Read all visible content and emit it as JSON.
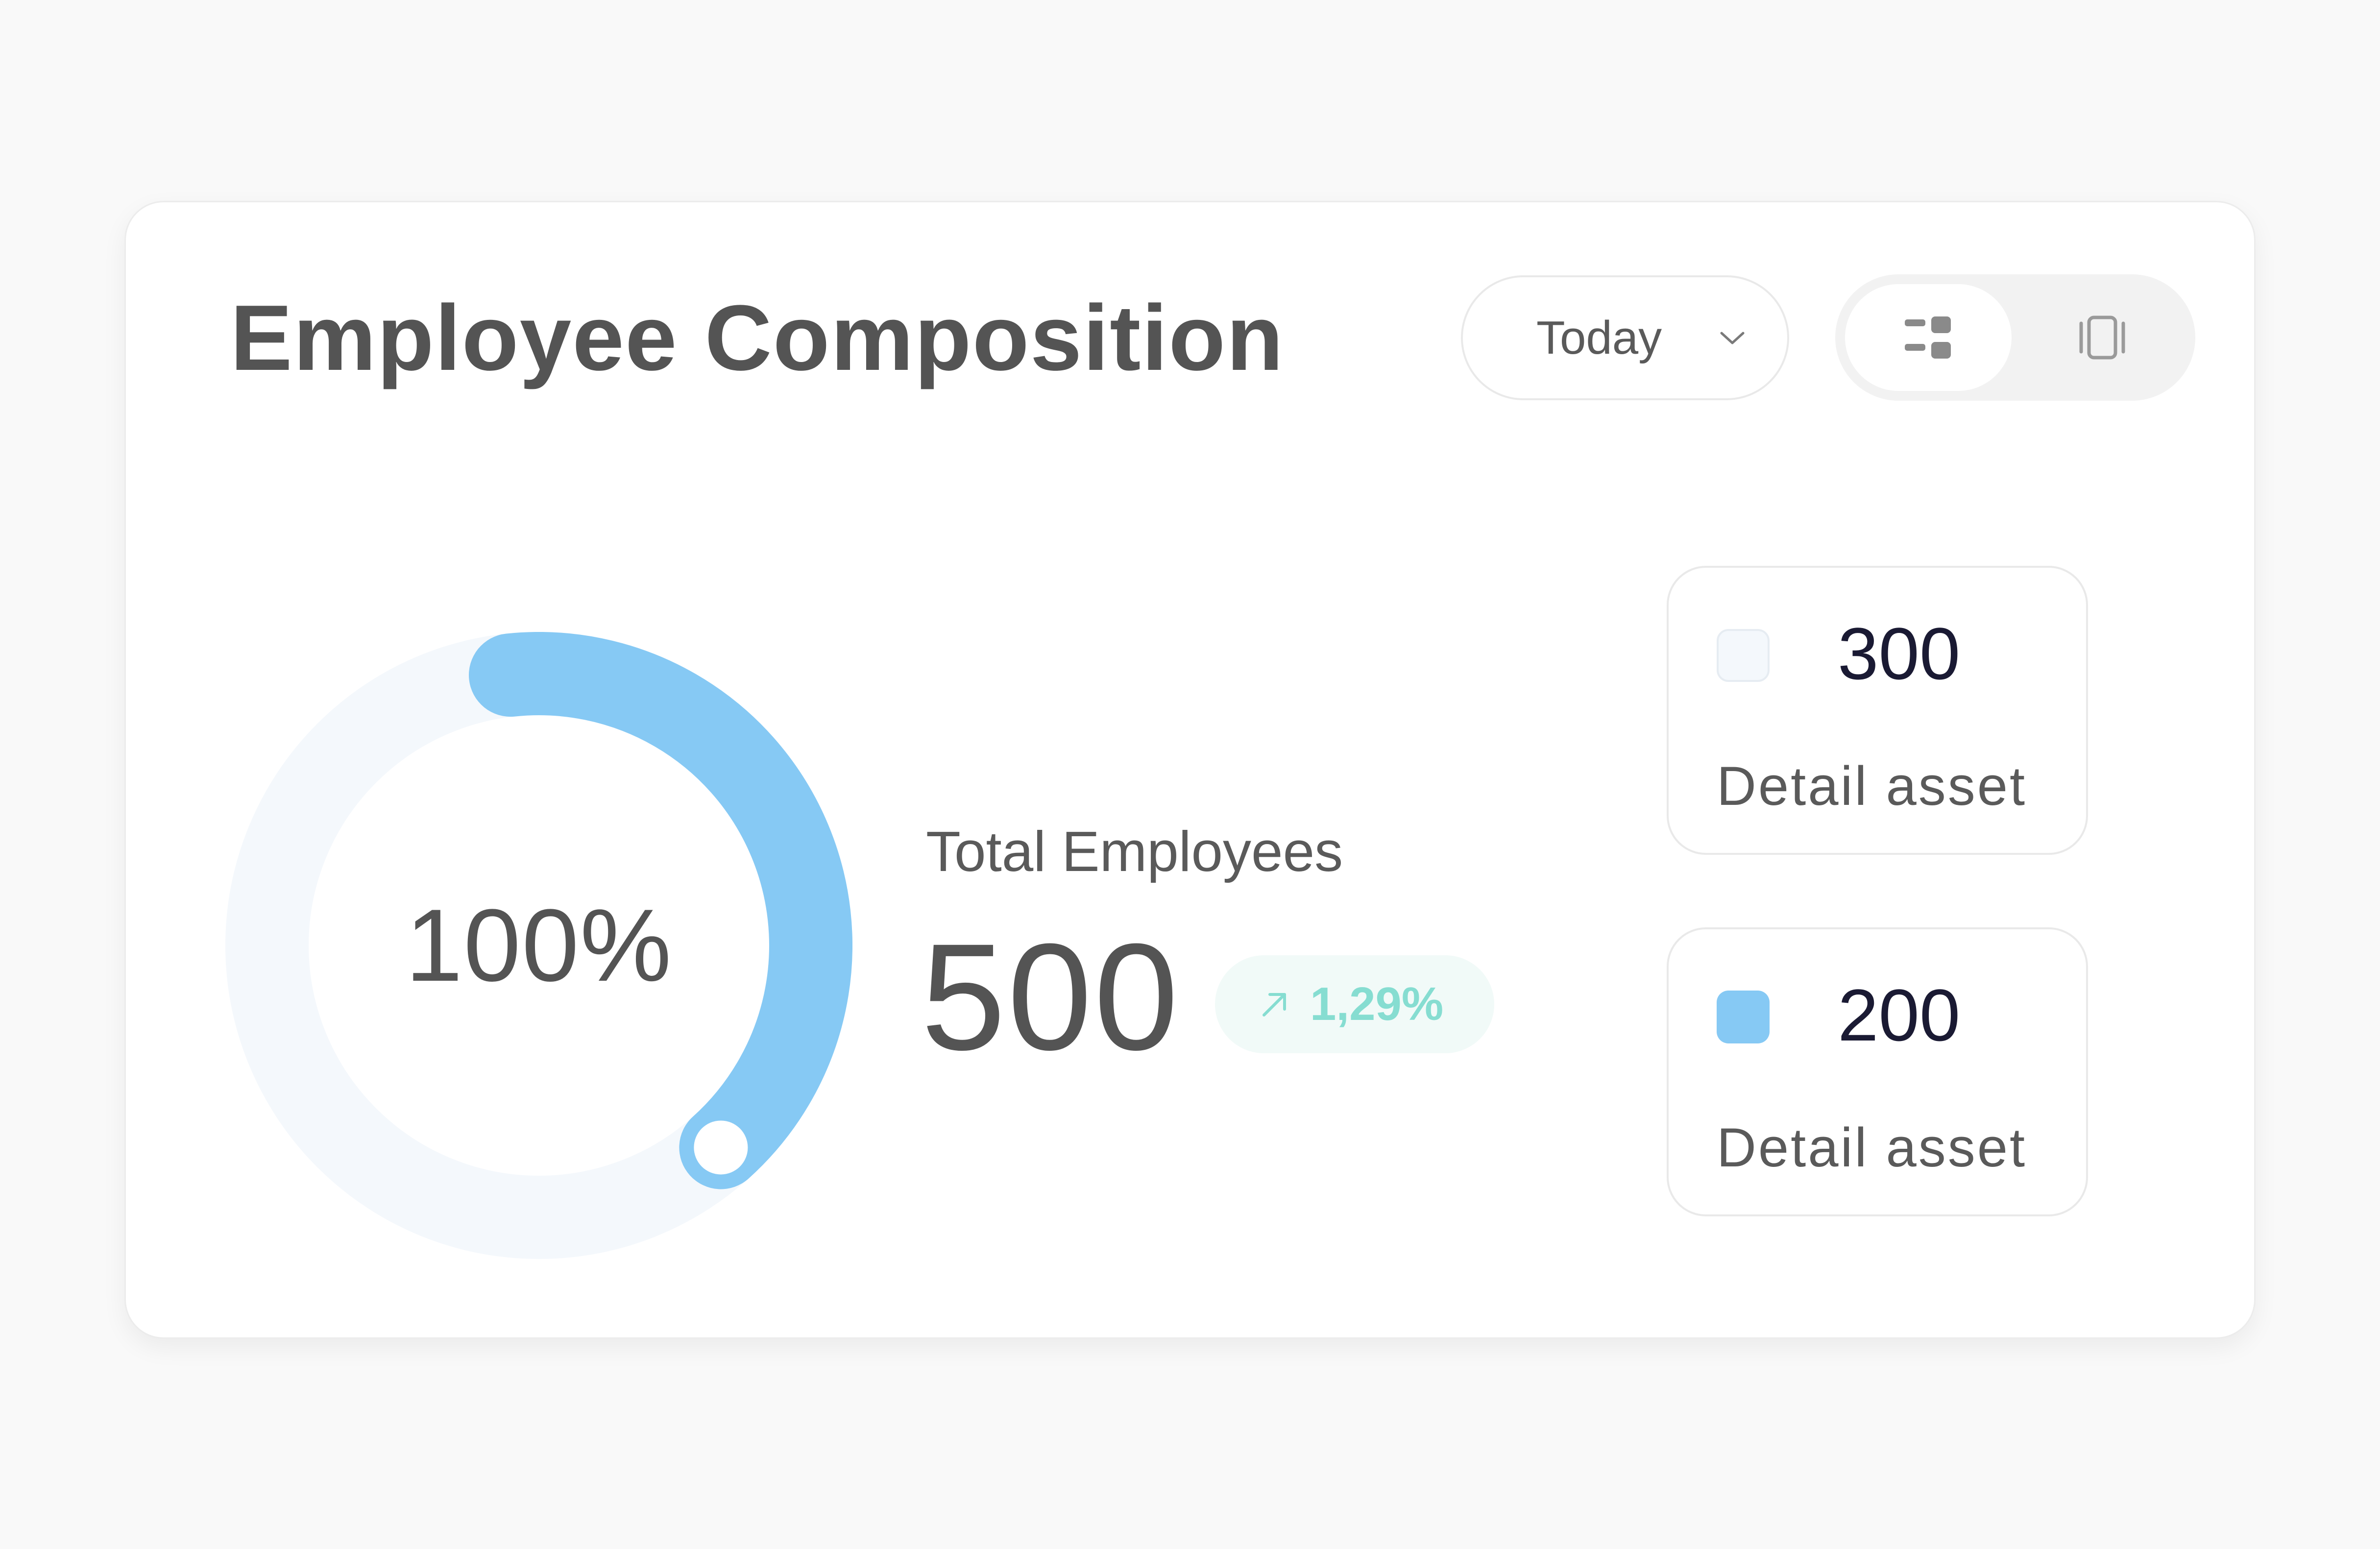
{
  "card": {
    "title": "Employee Composition",
    "period_select": {
      "selected": "Today"
    },
    "view_toggle": {
      "active": "list-view",
      "options": [
        "list-view",
        "card-view"
      ],
      "icons": [
        "grid-list-icon",
        "carousel-icon"
      ]
    }
  },
  "chart_data": {
    "type": "pie",
    "center_label": "100%",
    "total_label": "Total Employees",
    "total_value": "500",
    "trend": "1,29%",
    "trend_direction": "up",
    "segments": [
      {
        "value": 300,
        "label": "Detail asset",
        "color": "#f4f8fc"
      },
      {
        "value": 200,
        "label": "Detail asset",
        "color": "#86c9f4"
      }
    ],
    "legend": [
      {
        "value": "300",
        "label": "Detail asset",
        "color": "#f4f8fc"
      },
      {
        "value": "200",
        "label": "Detail asset",
        "color": "#86c9f4"
      }
    ]
  },
  "colors": {
    "accent": "#86c9f4",
    "track": "#f4f8fc",
    "trend_text": "#86ddd1",
    "trend_bg": "#f1faf8"
  },
  "icons": {
    "chevron": "chevron-down-icon",
    "trend_arrow": "arrow-up-right-icon"
  }
}
